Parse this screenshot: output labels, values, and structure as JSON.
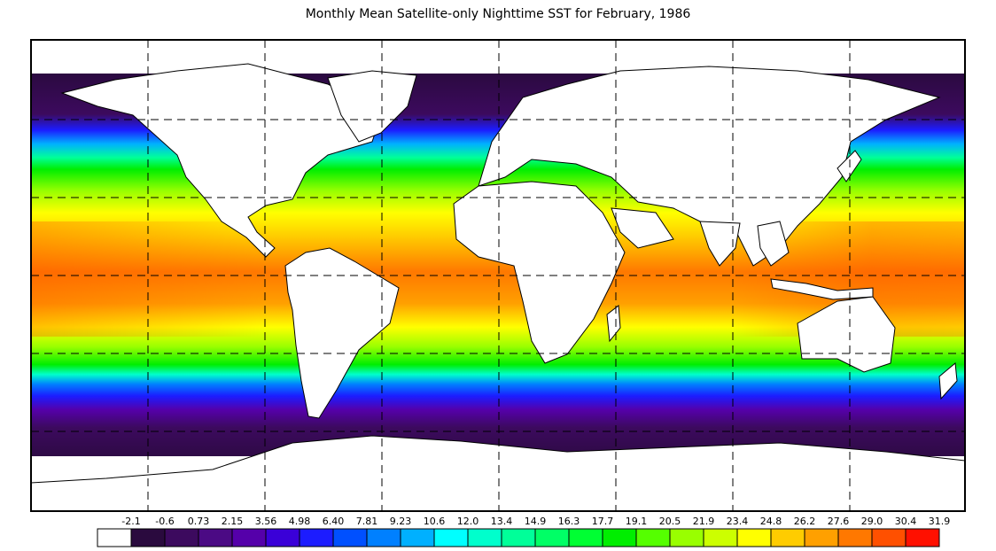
{
  "title": "Monthly Mean Satellite-only Nighttime SST for February, 1986",
  "legend": {
    "labels": [
      "-2.1",
      "-0.6",
      "0.73",
      "2.15",
      "3.56",
      "4.98",
      "6.40",
      "7.81",
      "9.23",
      "10.6",
      "12.0",
      "13.4",
      "14.9",
      "16.3",
      "17.7",
      "19.1",
      "20.5",
      "21.9",
      "23.4",
      "24.8",
      "26.2",
      "27.6",
      "29.0",
      "30.4",
      "31.9"
    ],
    "colors": [
      "#ffffff",
      "#2a0a3e",
      "#3c0a5e",
      "#4b0a84",
      "#5500aa",
      "#3a00d8",
      "#1c1cff",
      "#0050ff",
      "#0080ff",
      "#00b0ff",
      "#00ffff",
      "#00ffcc",
      "#00ff99",
      "#00ff66",
      "#00ff33",
      "#00ee00",
      "#55ff00",
      "#99ff00",
      "#ccff00",
      "#ffff00",
      "#ffcc00",
      "#ffa000",
      "#ff7800",
      "#ff5000",
      "#ff1000"
    ]
  },
  "map": {
    "latitude_gridlines": [
      60,
      30,
      0,
      -30,
      -60
    ],
    "longitude_gridlines": [
      -150,
      -90,
      -30,
      30,
      90,
      150
    ],
    "grid_style": "dashed",
    "sst_range_c": [
      -2.1,
      31.9
    ]
  }
}
